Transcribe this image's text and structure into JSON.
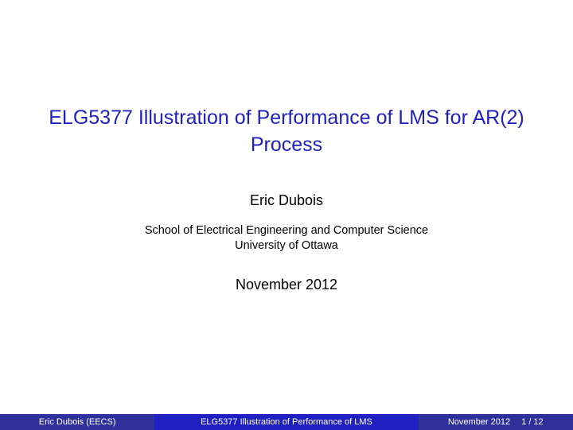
{
  "colors": {
    "title": "#2020c0",
    "body_text": "#000000",
    "footer_outer_bg": "#30309b",
    "footer_center_bg": "#2020c0",
    "footer_text": "#ffffff",
    "background": "#ffffff"
  },
  "typography": {
    "title_fontsize": 25,
    "author_fontsize": 18,
    "affil_fontsize": 14.5,
    "date_fontsize": 18,
    "footer_fontsize": 11,
    "font_family": "sans-serif"
  },
  "slide": {
    "title": "ELG5377 Illustration of Performance of LMS for AR(2) Process",
    "author": "Eric Dubois",
    "affiliation_line1": "School of Electrical Engineering and Computer Science",
    "affiliation_line2": "University of Ottawa",
    "date": "November 2012"
  },
  "footer": {
    "author_short": "Eric Dubois  (EECS)",
    "title_short": "ELG5377 Illustration of Performance of LMS",
    "date_short": "November 2012",
    "page": "1 / 12"
  }
}
